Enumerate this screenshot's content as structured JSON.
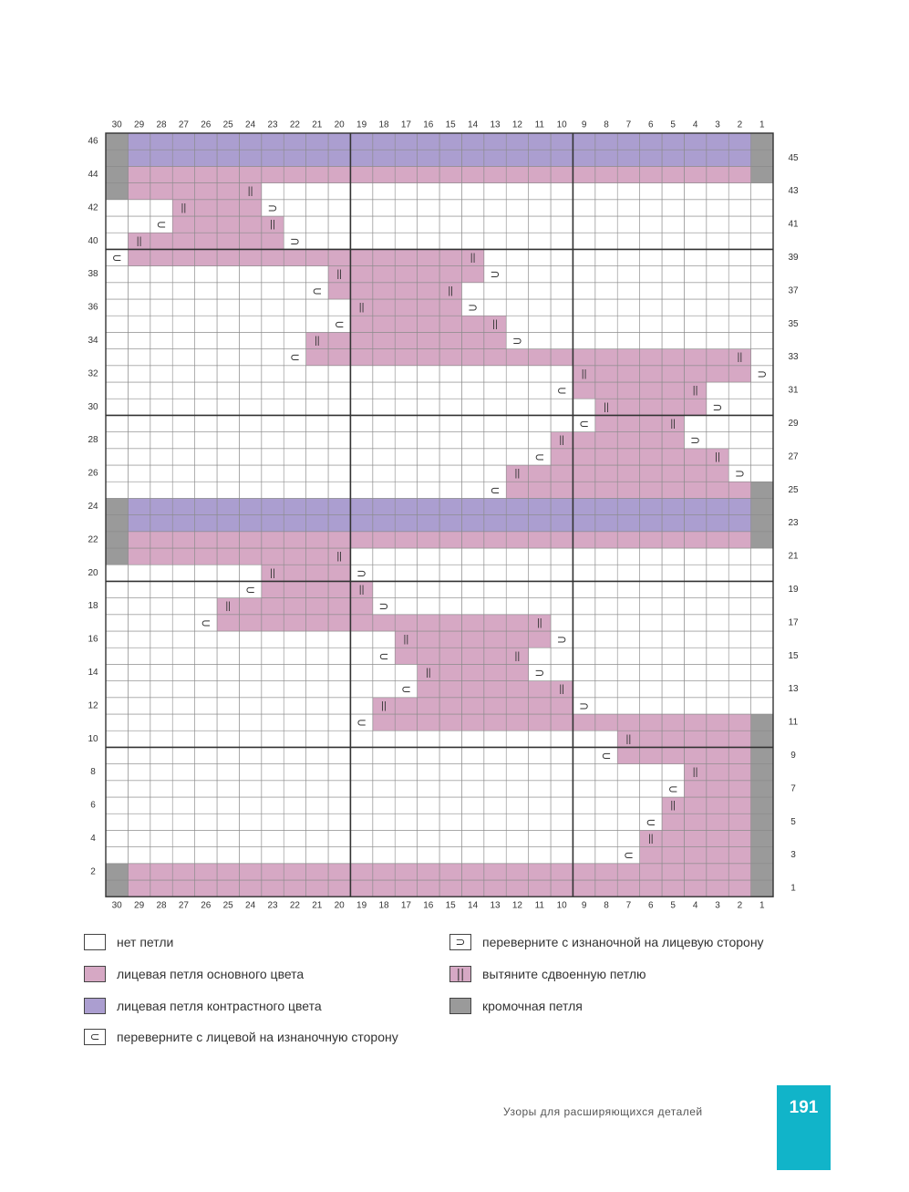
{
  "chart": {
    "columns": 30,
    "rows": 46,
    "col_numbers": [
      "30",
      "29",
      "28",
      "27",
      "26",
      "25",
      "24",
      "23",
      "22",
      "21",
      "20",
      "19",
      "18",
      "17",
      "16",
      "15",
      "14",
      "13",
      "12",
      "11",
      "10",
      "9",
      "8",
      "7",
      "6",
      "5",
      "4",
      "3",
      "2",
      "1"
    ],
    "left_row_numbers": [
      "46",
      "44",
      "42",
      "40",
      "38",
      "36",
      "34",
      "32",
      "30",
      "28",
      "26",
      "24",
      "22",
      "20",
      "18",
      "16",
      "14",
      "12",
      "10",
      "8",
      "6",
      "4",
      "2"
    ],
    "right_row_numbers": [
      "45",
      "43",
      "41",
      "39",
      "37",
      "35",
      "33",
      "31",
      "29",
      "27",
      "25",
      "23",
      "21",
      "19",
      "17",
      "15",
      "13",
      "11",
      "9",
      "7",
      "5",
      "3",
      "1"
    ],
    "colors": {
      "main": "#d6a8c4",
      "contrast": "#ab9ed0",
      "edge": "#9a9a9a",
      "empty": "#ffffff",
      "grid": "#8a8a8a"
    },
    "symbols": {
      "turn_rs": "⊂",
      "turn_ws": "⊃",
      "double": "||"
    },
    "row_specs": {
      "46": {
        "contrast": [
          [
            2,
            29
          ]
        ],
        "edge": [
          1,
          30
        ]
      },
      "45": {
        "contrast": [
          [
            2,
            29
          ]
        ],
        "edge": [
          1,
          30
        ]
      },
      "44": {
        "main": [
          [
            2,
            29
          ]
        ],
        "edge": [
          1,
          30
        ]
      },
      "43": {
        "main": [
          [
            24,
            29
          ]
        ],
        "edge": [
          30
        ],
        "dbl": [
          24
        ]
      },
      "42": {
        "main": [
          [
            24,
            27
          ]
        ],
        "dbl": [
          27
        ],
        "tr": [
          23
        ]
      },
      "41": {
        "main": [
          [
            23,
            27
          ]
        ],
        "dbl": [
          23
        ],
        "tl": [
          28
        ]
      },
      "40": {
        "main": [
          [
            23,
            29
          ]
        ],
        "dbl": [
          29
        ],
        "tr": [
          22
        ]
      },
      "39": {
        "main": [
          [
            14,
            29
          ]
        ],
        "dbl": [
          14
        ],
        "tl": [
          30
        ]
      },
      "38": {
        "main": [
          [
            14,
            20
          ]
        ],
        "dbl": [
          20
        ],
        "tr": [
          13
        ]
      },
      "37": {
        "main": [
          [
            15,
            20
          ]
        ],
        "dbl": [
          15
        ],
        "tl": [
          21
        ]
      },
      "36": {
        "main": [
          [
            15,
            19
          ]
        ],
        "dbl": [
          19
        ],
        "tr": [
          14
        ]
      },
      "35": {
        "main": [
          [
            13,
            19
          ]
        ],
        "dbl": [
          13
        ],
        "tl": [
          20
        ]
      },
      "34": {
        "main": [
          [
            13,
            21
          ]
        ],
        "dbl": [
          21
        ],
        "tr": [
          12
        ]
      },
      "33": {
        "main": [
          [
            2,
            21
          ]
        ],
        "dbl": [
          2
        ],
        "tl": [
          22
        ]
      },
      "32": {
        "main": [
          [
            2,
            9
          ]
        ],
        "dbl": [
          9
        ],
        "tr": [
          1
        ]
      },
      "31": {
        "main": [
          [
            4,
            9
          ]
        ],
        "dbl": [
          4
        ],
        "tl": [
          10
        ]
      },
      "30": {
        "main": [
          [
            4,
            8
          ]
        ],
        "dbl": [
          8
        ],
        "tr": [
          3
        ]
      },
      "29": {
        "main": [
          [
            5,
            8
          ]
        ],
        "dbl": [
          5
        ],
        "tl": [
          9
        ]
      },
      "28": {
        "main": [
          [
            5,
            10
          ]
        ],
        "dbl": [
          10
        ],
        "tr": [
          4
        ]
      },
      "27": {
        "main": [
          [
            3,
            10
          ]
        ],
        "dbl": [
          3
        ],
        "tl": [
          11
        ]
      },
      "26": {
        "main": [
          [
            3,
            12
          ]
        ],
        "dbl": [
          12
        ],
        "tr": [
          2
        ]
      },
      "25": {
        "main": [
          [
            2,
            12
          ]
        ],
        "edge": [
          1
        ],
        "tl": [
          13
        ]
      },
      "24": {
        "contrast": [
          [
            2,
            29
          ]
        ],
        "edge": [
          1,
          30
        ]
      },
      "23": {
        "contrast": [
          [
            2,
            29
          ]
        ],
        "edge": [
          1,
          30
        ]
      },
      "22": {
        "main": [
          [
            2,
            29
          ]
        ],
        "edge": [
          1,
          30
        ]
      },
      "21": {
        "main": [
          [
            20,
            29
          ]
        ],
        "edge": [
          30
        ],
        "dbl": [
          20
        ]
      },
      "20": {
        "main": [
          [
            20,
            23
          ]
        ],
        "dbl": [
          23
        ],
        "tr": [
          19
        ]
      },
      "19": {
        "main": [
          [
            19,
            23
          ]
        ],
        "dbl": [
          19
        ],
        "tl": [
          24
        ]
      },
      "18": {
        "main": [
          [
            19,
            25
          ]
        ],
        "dbl": [
          25
        ],
        "tr": [
          18
        ]
      },
      "17": {
        "main": [
          [
            11,
            25
          ]
        ],
        "dbl": [
          11
        ],
        "tl": [
          26
        ]
      },
      "16": {
        "main": [
          [
            11,
            17
          ]
        ],
        "dbl": [
          17
        ],
        "tr": [
          10
        ]
      },
      "15": {
        "main": [
          [
            12,
            17
          ]
        ],
        "dbl": [
          12
        ],
        "tl": [
          18
        ]
      },
      "14": {
        "main": [
          [
            12,
            16
          ]
        ],
        "dbl": [
          16
        ],
        "tr": [
          11
        ]
      },
      "13": {
        "main": [
          [
            10,
            16
          ]
        ],
        "dbl": [
          10
        ],
        "tl": [
          17
        ]
      },
      "12": {
        "main": [
          [
            10,
            18
          ]
        ],
        "dbl": [
          18
        ],
        "tr": [
          9
        ]
      },
      "11": {
        "main": [
          [
            2,
            18
          ]
        ],
        "edge": [
          1
        ],
        "tl": [
          19
        ]
      },
      "10": {
        "main": [
          [
            2,
            7
          ]
        ],
        "edge": [
          1
        ],
        "dbl": [
          7
        ]
      },
      "9": {
        "main": [
          [
            2,
            7
          ]
        ],
        "edge": [
          1
        ],
        "tl": [
          8
        ]
      },
      "8": {
        "main": [
          [
            2,
            4
          ]
        ],
        "edge": [
          1
        ],
        "dbl": [
          4
        ]
      },
      "7": {
        "main": [
          [
            2,
            4
          ]
        ],
        "edge": [
          1
        ],
        "tl": [
          5
        ]
      },
      "6": {
        "main": [
          [
            2,
            5
          ]
        ],
        "edge": [
          1
        ],
        "dbl": [
          5
        ]
      },
      "5": {
        "main": [
          [
            2,
            5
          ]
        ],
        "edge": [
          1
        ],
        "tl": [
          6
        ]
      },
      "4": {
        "main": [
          [
            2,
            6
          ]
        ],
        "edge": [
          1
        ],
        "dbl": [
          6
        ]
      },
      "3": {
        "main": [
          [
            2,
            6
          ]
        ],
        "edge": [
          1
        ],
        "tl": [
          7
        ]
      },
      "2": {
        "main": [
          [
            2,
            29
          ]
        ],
        "edge": [
          1,
          30
        ]
      },
      "1": {
        "main": [
          [
            2,
            29
          ]
        ],
        "edge": [
          1,
          30
        ]
      }
    }
  },
  "legend": {
    "no_stitch": "нет петли",
    "main_knit": "лицевая петля основного цвета",
    "contrast_knit": "лицевая петля контрастного цвета",
    "turn_rs_to_ws": "переверните с лицевой на изнаночную сторону",
    "turn_ws_to_rs": "переверните с изнаночной на лицевую сторону",
    "double_stitch": "вытяните сдвоенную петлю",
    "edge_stitch": "кромочная петля"
  },
  "footer": {
    "section_title": "Узоры для расширяющихся деталей",
    "page_number": "191"
  }
}
